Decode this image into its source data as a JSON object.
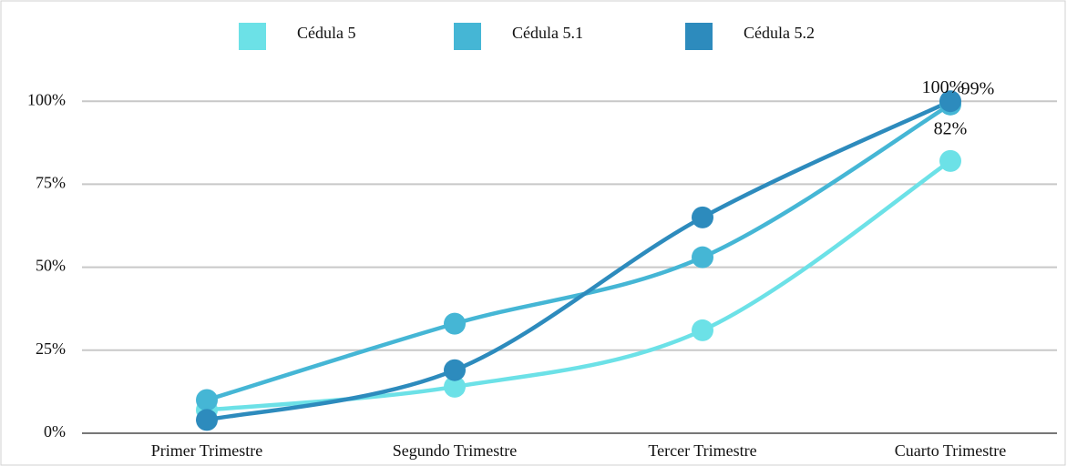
{
  "chart_data": {
    "type": "line",
    "categories": [
      "Primer Trimestre",
      "Segundo Trimestre",
      "Tercer Trimestre",
      "Cuarto Trimestre"
    ],
    "series": [
      {
        "name": "Cédula 5",
        "color": "#6ce1e7",
        "values": [
          7,
          14,
          31,
          82
        ],
        "value_labels": [
          null,
          null,
          null,
          "82%"
        ]
      },
      {
        "name": "Cédula 5.1",
        "color": "#45b6d5",
        "values": [
          10,
          33,
          53,
          99
        ],
        "value_labels": [
          null,
          null,
          null,
          "99%"
        ]
      },
      {
        "name": "Cédula 5.2",
        "color": "#2d8bbd",
        "values": [
          4,
          19,
          65,
          100
        ],
        "value_labels": [
          null,
          null,
          null,
          "100%"
        ]
      }
    ],
    "ylim": [
      0,
      125
    ],
    "yticks": [
      {
        "value": 0,
        "label": "0%"
      },
      {
        "value": 25,
        "label": "25%"
      },
      {
        "value": 50,
        "label": "50%"
      },
      {
        "value": 75,
        "label": "75%"
      },
      {
        "value": 100,
        "label": "100%"
      }
    ],
    "grid": true,
    "legend": "top",
    "smooth": true
  }
}
